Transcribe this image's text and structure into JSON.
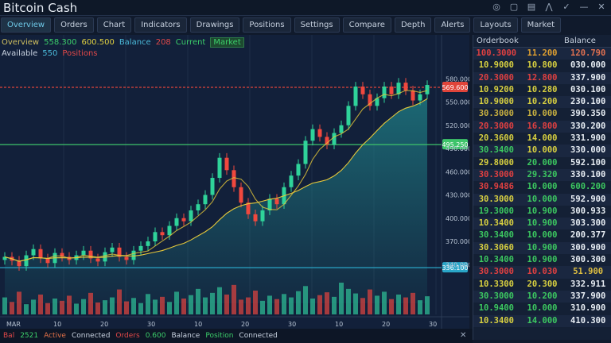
{
  "window": {
    "title": "Bitcoin Cash",
    "controls": [
      "◎",
      "▢",
      "▤",
      "⋀",
      "✓",
      "—",
      "✕"
    ]
  },
  "toolbar": [
    "Overview",
    "Orders",
    "Chart",
    "Indicators",
    "Drawings",
    "Positions",
    "Settings",
    "Compare",
    "Depth",
    "Alerts",
    "Layouts",
    "Market"
  ],
  "info": {
    "line1": [
      {
        "t": "Overview",
        "c": "#d0c060"
      },
      {
        "t": "558.300",
        "c": "#3ccf6a"
      },
      {
        "t": "600.500",
        "c": "#e0d040"
      },
      {
        "t": "Balance",
        "c": "#4ab8d8"
      },
      {
        "t": "208",
        "c": "#e04848"
      },
      {
        "t": "Current",
        "c": "#3ccf6a"
      },
      {
        "t": "Market",
        "c": "#3ccf6a",
        "badge": true
      }
    ],
    "line2": [
      {
        "t": "Available",
        "c": "#c8d2e0"
      },
      {
        "t": "550",
        "c": "#4ab8d8"
      },
      {
        "t": "Positions",
        "c": "#e04848"
      }
    ]
  },
  "chart_data": {
    "type": "candlestick",
    "candles": [
      [
        346,
        356,
        340,
        350
      ],
      [
        350,
        356,
        339,
        345
      ],
      [
        345,
        351,
        332,
        338
      ],
      [
        338,
        358,
        332,
        352
      ],
      [
        352,
        366,
        346,
        360
      ],
      [
        360,
        366,
        342,
        348
      ],
      [
        348,
        354,
        336,
        342
      ],
      [
        342,
        361,
        336,
        355
      ],
      [
        355,
        361,
        344,
        350
      ],
      [
        350,
        356,
        340,
        346
      ],
      [
        346,
        358,
        340,
        352
      ],
      [
        352,
        364,
        346,
        358
      ],
      [
        358,
        364,
        342,
        348
      ],
      [
        348,
        354,
        338,
        344
      ],
      [
        344,
        362,
        338,
        356
      ],
      [
        356,
        368,
        350,
        362
      ],
      [
        362,
        368,
        344,
        350
      ],
      [
        350,
        356,
        340,
        346
      ],
      [
        346,
        364,
        340,
        358
      ],
      [
        358,
        370,
        352,
        364
      ],
      [
        364,
        376,
        358,
        370
      ],
      [
        370,
        388,
        364,
        382
      ],
      [
        382,
        388,
        372,
        378
      ],
      [
        378,
        396,
        372,
        390
      ],
      [
        390,
        406,
        384,
        400
      ],
      [
        400,
        406,
        390,
        396
      ],
      [
        396,
        416,
        390,
        410
      ],
      [
        410,
        424,
        404,
        418
      ],
      [
        418,
        436,
        412,
        430
      ],
      [
        430,
        458,
        424,
        452
      ],
      [
        452,
        484,
        446,
        478
      ],
      [
        478,
        484,
        456,
        462
      ],
      [
        462,
        468,
        434,
        440
      ],
      [
        440,
        446,
        414,
        420
      ],
      [
        420,
        426,
        399,
        405
      ],
      [
        405,
        411,
        390,
        396
      ],
      [
        396,
        416,
        390,
        410
      ],
      [
        410,
        431,
        404,
        425
      ],
      [
        425,
        431,
        412,
        418
      ],
      [
        418,
        446,
        412,
        440
      ],
      [
        440,
        461,
        434,
        455
      ],
      [
        455,
        476,
        449,
        470
      ],
      [
        470,
        506,
        464,
        500
      ],
      [
        500,
        521,
        494,
        515
      ],
      [
        515,
        521,
        499,
        505
      ],
      [
        505,
        511,
        489,
        495
      ],
      [
        495,
        516,
        489,
        510
      ],
      [
        510,
        526,
        504,
        520
      ],
      [
        520,
        551,
        514,
        545
      ],
      [
        545,
        576,
        539,
        570
      ],
      [
        570,
        576,
        554,
        560
      ],
      [
        560,
        566,
        539,
        545
      ],
      [
        545,
        561,
        539,
        555
      ],
      [
        555,
        576,
        549,
        570
      ],
      [
        570,
        576,
        554,
        560
      ],
      [
        560,
        581,
        554,
        575
      ],
      [
        575,
        581,
        559,
        565
      ],
      [
        565,
        571,
        546,
        552
      ],
      [
        552,
        566,
        546,
        560
      ],
      [
        560,
        578,
        554,
        572
      ]
    ],
    "volume": [
      30,
      22,
      40,
      18,
      26,
      35,
      20,
      28,
      24,
      33,
      19,
      27,
      38,
      21,
      25,
      30,
      44,
      23,
      29,
      20,
      36,
      26,
      31,
      22,
      40,
      28,
      34,
      45,
      30,
      38,
      48,
      35,
      52,
      26,
      30,
      42,
      24,
      33,
      27,
      36,
      30,
      41,
      50,
      28,
      34,
      39,
      31,
      56,
      45,
      37,
      29,
      44,
      33,
      40,
      27,
      35,
      30,
      38,
      25,
      32
    ],
    "ylim": [
      290,
      610
    ],
    "yticks": [
      "580.000",
      "550.000",
      "520.000",
      "490.000",
      "460.000",
      "430.000",
      "400.000",
      "370.000",
      "340.000"
    ],
    "ytick_values": [
      580,
      550,
      520,
      490,
      460,
      430,
      400,
      370,
      340
    ],
    "xticks": [
      "MAR",
      "10",
      "20",
      "30",
      "10",
      "20",
      "30",
      "10",
      "20",
      "30"
    ],
    "levels": [
      {
        "price": 569,
        "label": "569.600",
        "color": "#e0443a"
      },
      {
        "price": 495,
        "label": "495.250",
        "color": "#3ec46a"
      },
      {
        "price": 336,
        "label": "336.100",
        "color": "#2aa6c8"
      }
    ],
    "colors": {
      "up": "#2fd39a",
      "down": "#f0483e",
      "ma": "#e6c83a",
      "area": "#1f7f86"
    }
  },
  "orderbook": {
    "headers": [
      "Orderbook",
      "Balance"
    ],
    "rows": [
      [
        "100.3000",
        "11.200",
        "120.790",
        "#e04040",
        "#e0a030",
        "#e07050"
      ],
      [
        "10.9000",
        "10.800",
        "030.000",
        "#d8d040",
        "#d8d040",
        "#e8eef4"
      ],
      [
        "20.3000",
        "12.800",
        "337.900",
        "#e04040",
        "#e04040",
        "#e8eef4"
      ],
      [
        "10.9200",
        "10.280",
        "030.100",
        "#d8d040",
        "#d8d040",
        "#e8eef4"
      ],
      [
        "10.9000",
        "10.200",
        "230.100",
        "#d8d040",
        "#d8d040",
        "#e8eef4"
      ],
      [
        "30.3000",
        "10.000",
        "390.350",
        "#c8b040",
        "#c8b040",
        "#e8eef4"
      ],
      [
        "20.3000",
        "16.800",
        "330.200",
        "#e04040",
        "#e04040",
        "#e8eef4"
      ],
      [
        "20.3600",
        "14.000",
        "331.900",
        "#d8d040",
        "#d8d040",
        "#e8eef4"
      ],
      [
        "30.3400",
        "10.000",
        "330.000",
        "#3cc860",
        "#d8d040",
        "#e8eef4"
      ],
      [
        "29.8000",
        "20.000",
        "592.100",
        "#d8d040",
        "#3cc860",
        "#e8eef4"
      ],
      [
        "30.3000",
        "29.320",
        "330.100",
        "#e04040",
        "#3cc860",
        "#e8eef4"
      ],
      [
        "30.9486",
        "10.000",
        "600.200",
        "#e04040",
        "#3cc860",
        "#3cc860"
      ],
      [
        "30.3000",
        "10.000",
        "592.900",
        "#d8d040",
        "#3cc860",
        "#e8eef4"
      ],
      [
        "19.3000",
        "10.900",
        "300.933",
        "#3cc860",
        "#3cc860",
        "#e8eef4"
      ],
      [
        "10.3400",
        "10.900",
        "303.300",
        "#d8d040",
        "#3cc860",
        "#e8eef4"
      ],
      [
        "30.3400",
        "10.000",
        "200.377",
        "#3cc860",
        "#3cc860",
        "#e8eef4"
      ],
      [
        "30.3060",
        "10.900",
        "300.900",
        "#d8d040",
        "#3cc860",
        "#e8eef4"
      ],
      [
        "10.3400",
        "10.900",
        "300.300",
        "#3cc860",
        "#3cc860",
        "#e8eef4"
      ],
      [
        "30.3000",
        "10.030",
        "51.900",
        "#e04040",
        "#e04040",
        "#e0c040"
      ],
      [
        "10.3300",
        "20.300",
        "332.911",
        "#d8d040",
        "#d8d040",
        "#e8eef4"
      ],
      [
        "30.3000",
        "10.200",
        "337.900",
        "#3cc860",
        "#3cc860",
        "#e8eef4"
      ],
      [
        "10.9400",
        "10.000",
        "310.900",
        "#3cc860",
        "#3cc860",
        "#e8eef4"
      ],
      [
        "10.3400",
        "14.000",
        "410.300",
        "#d8d040",
        "#3cc860",
        "#e8eef4"
      ]
    ]
  },
  "status": [
    {
      "t": "Bal",
      "c": "#e04848"
    },
    {
      "t": "2521",
      "c": "#3ccf6a"
    },
    {
      "t": "Active",
      "c": "#e07048"
    },
    {
      "t": "Connected",
      "c": "#c8d2e0"
    },
    {
      "t": "Orders",
      "c": "#e04848"
    },
    {
      "t": "0.600",
      "c": "#3ccf6a"
    },
    {
      "t": "Balance",
      "c": "#c8d2e0"
    },
    {
      "t": "Position",
      "c": "#3ccf6a"
    },
    {
      "t": "Connected",
      "c": "#c8d2e0"
    }
  ],
  "status_close": "✕"
}
